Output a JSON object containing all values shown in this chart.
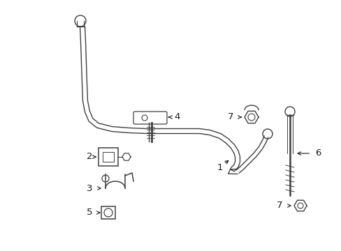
{
  "bg_color": "#ffffff",
  "line_color": "#404040",
  "text_color": "#1a1a1a",
  "figsize": [
    4.89,
    3.6
  ],
  "dpi": 100
}
